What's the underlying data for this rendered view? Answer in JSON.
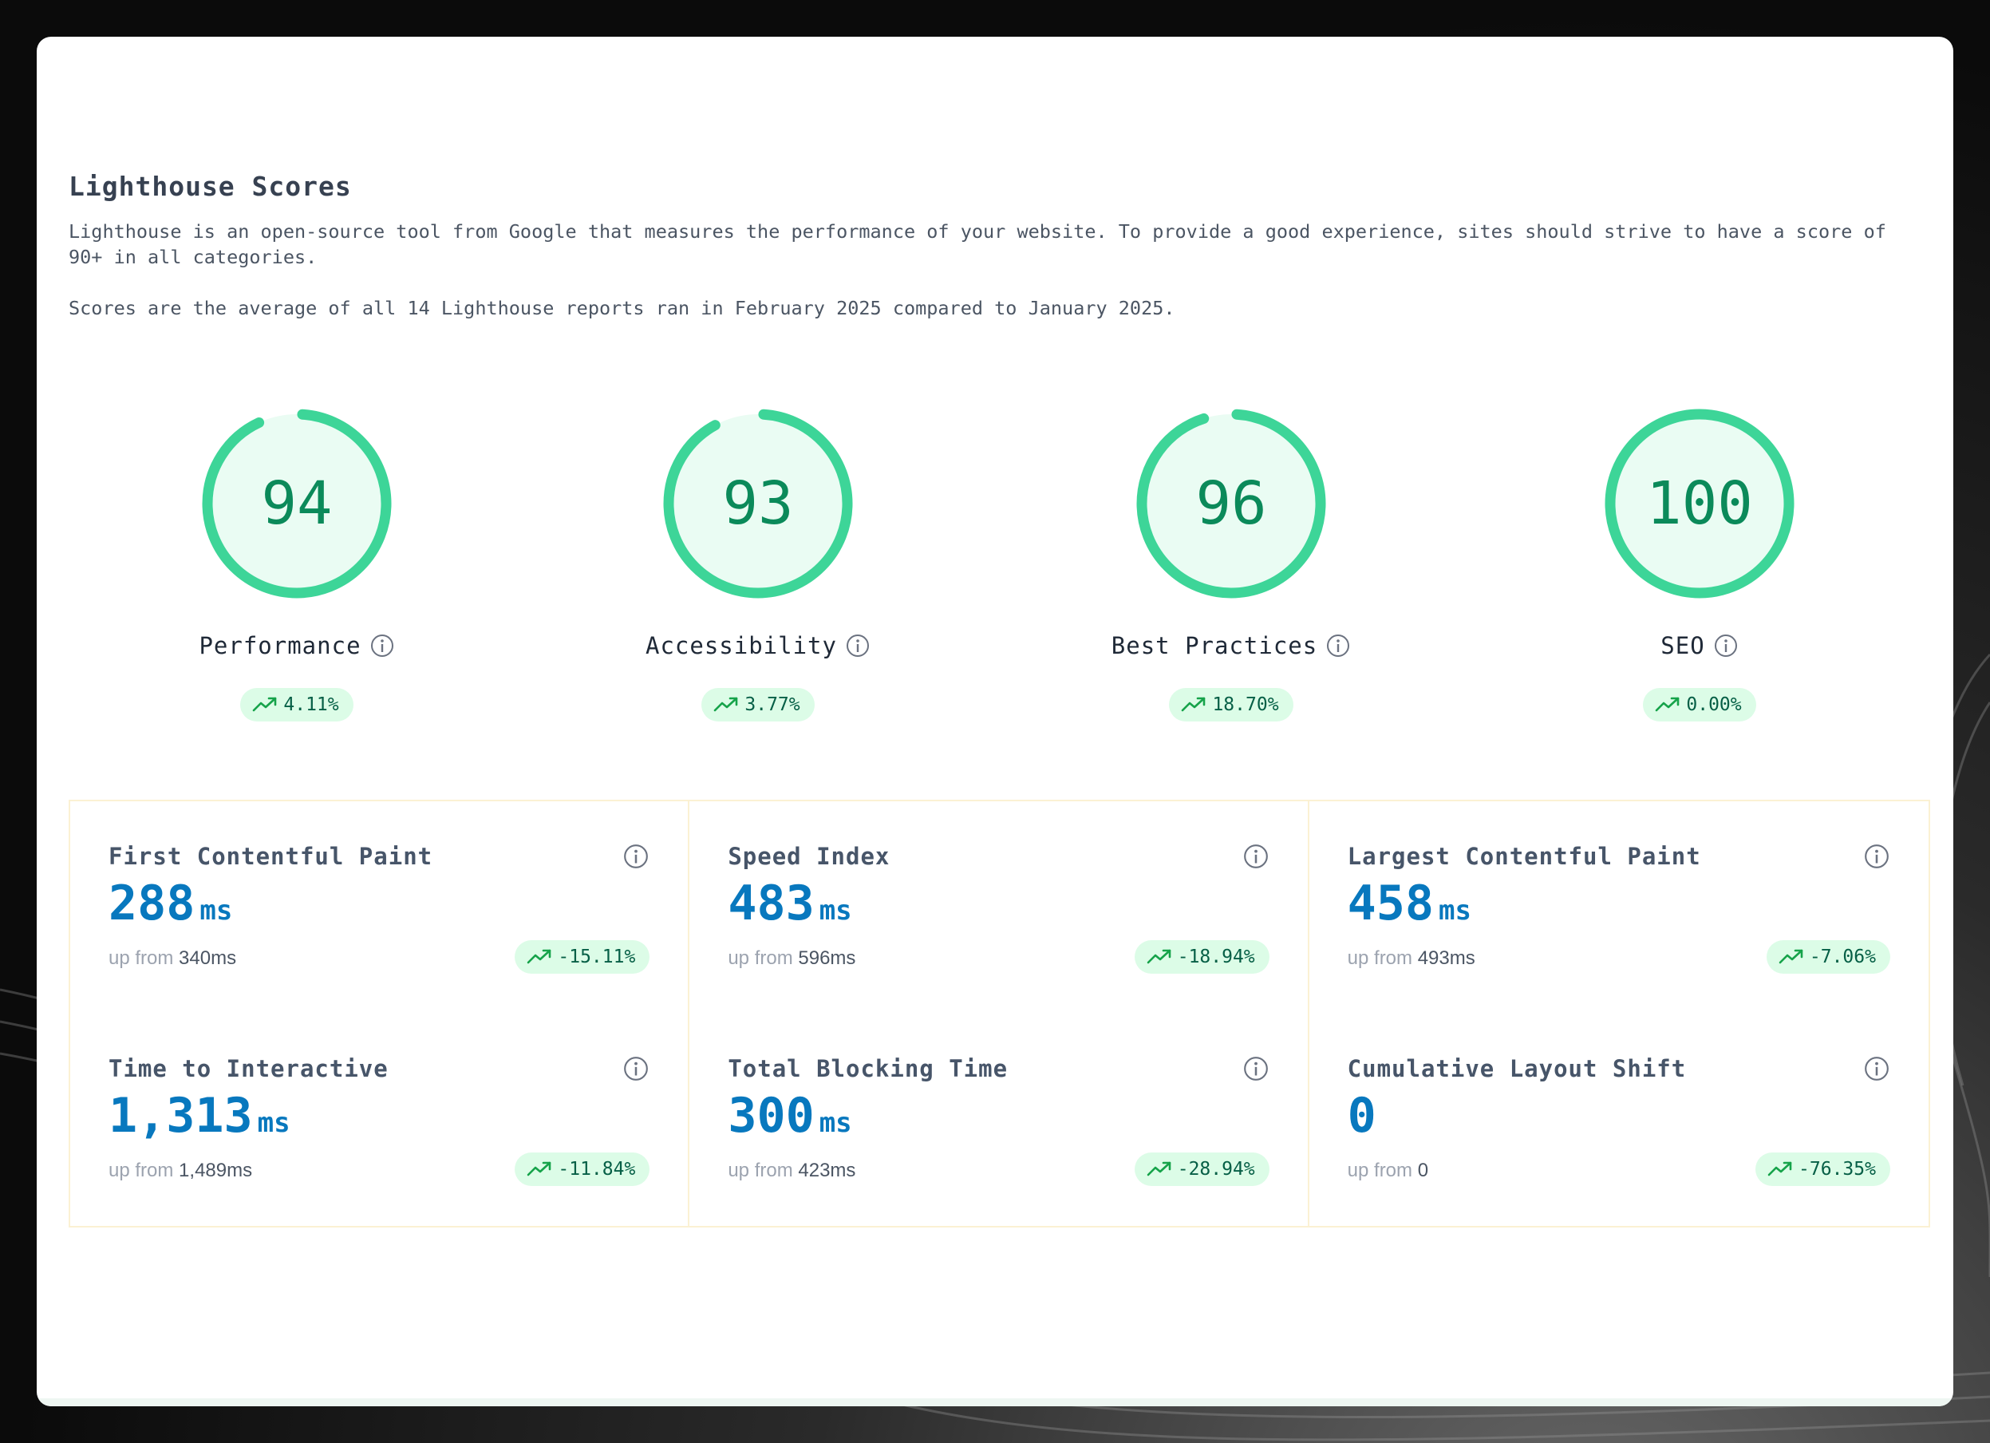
{
  "header": {
    "title": "Lighthouse Scores",
    "description": "Lighthouse is an open-source tool from Google that measures the performance of your website. To provide a good experience, sites should strive to have a score of 90+ in all categories.",
    "period_note": "Scores are the average of all 14 Lighthouse reports ran in February 2025 compared to January 2025."
  },
  "scores": [
    {
      "label": "Performance",
      "value": "94",
      "fraction": 0.94,
      "delta": "4.11%"
    },
    {
      "label": "Accessibility",
      "value": "93",
      "fraction": 0.93,
      "delta": "3.77%"
    },
    {
      "label": "Best Practices",
      "value": "96",
      "fraction": 0.96,
      "delta": "18.70%"
    },
    {
      "label": "SEO",
      "value": "100",
      "fraction": 1.0,
      "delta": "0.00%"
    }
  ],
  "metrics": {
    "fcp": {
      "name": "First Contentful Paint",
      "value": "288",
      "unit": "ms",
      "from_label": "up from",
      "from_value": "340ms",
      "delta": "-15.11%"
    },
    "tti": {
      "name": "Time to Interactive",
      "value": "1,313",
      "unit": "ms",
      "from_label": "up from",
      "from_value": "1,489ms",
      "delta": "-11.84%"
    },
    "si": {
      "name": "Speed Index",
      "value": "483",
      "unit": "ms",
      "from_label": "up from",
      "from_value": "596ms",
      "delta": "-18.94%"
    },
    "tbt": {
      "name": "Total Blocking Time",
      "value": "300",
      "unit": "ms",
      "from_label": "up from",
      "from_value": "423ms",
      "delta": "-28.94%"
    },
    "lcp": {
      "name": "Largest Contentful Paint",
      "value": "458",
      "unit": "ms",
      "from_label": "up from",
      "from_value": "493ms",
      "delta": "-7.06%"
    },
    "cls": {
      "name": "Cumulative Layout Shift",
      "value": "0",
      "unit": "",
      "from_label": "up from",
      "from_value": "0",
      "delta": "-76.35%"
    }
  },
  "icons": {
    "info": "info-icon",
    "trend": "trend-up-icon"
  },
  "colors": {
    "gauge_ring": "#3dd598",
    "gauge_fill": "#eafcf3",
    "gauge_text": "#0b8a5a",
    "metric_value": "#0878be",
    "delta_bg": "#dcfce7"
  }
}
